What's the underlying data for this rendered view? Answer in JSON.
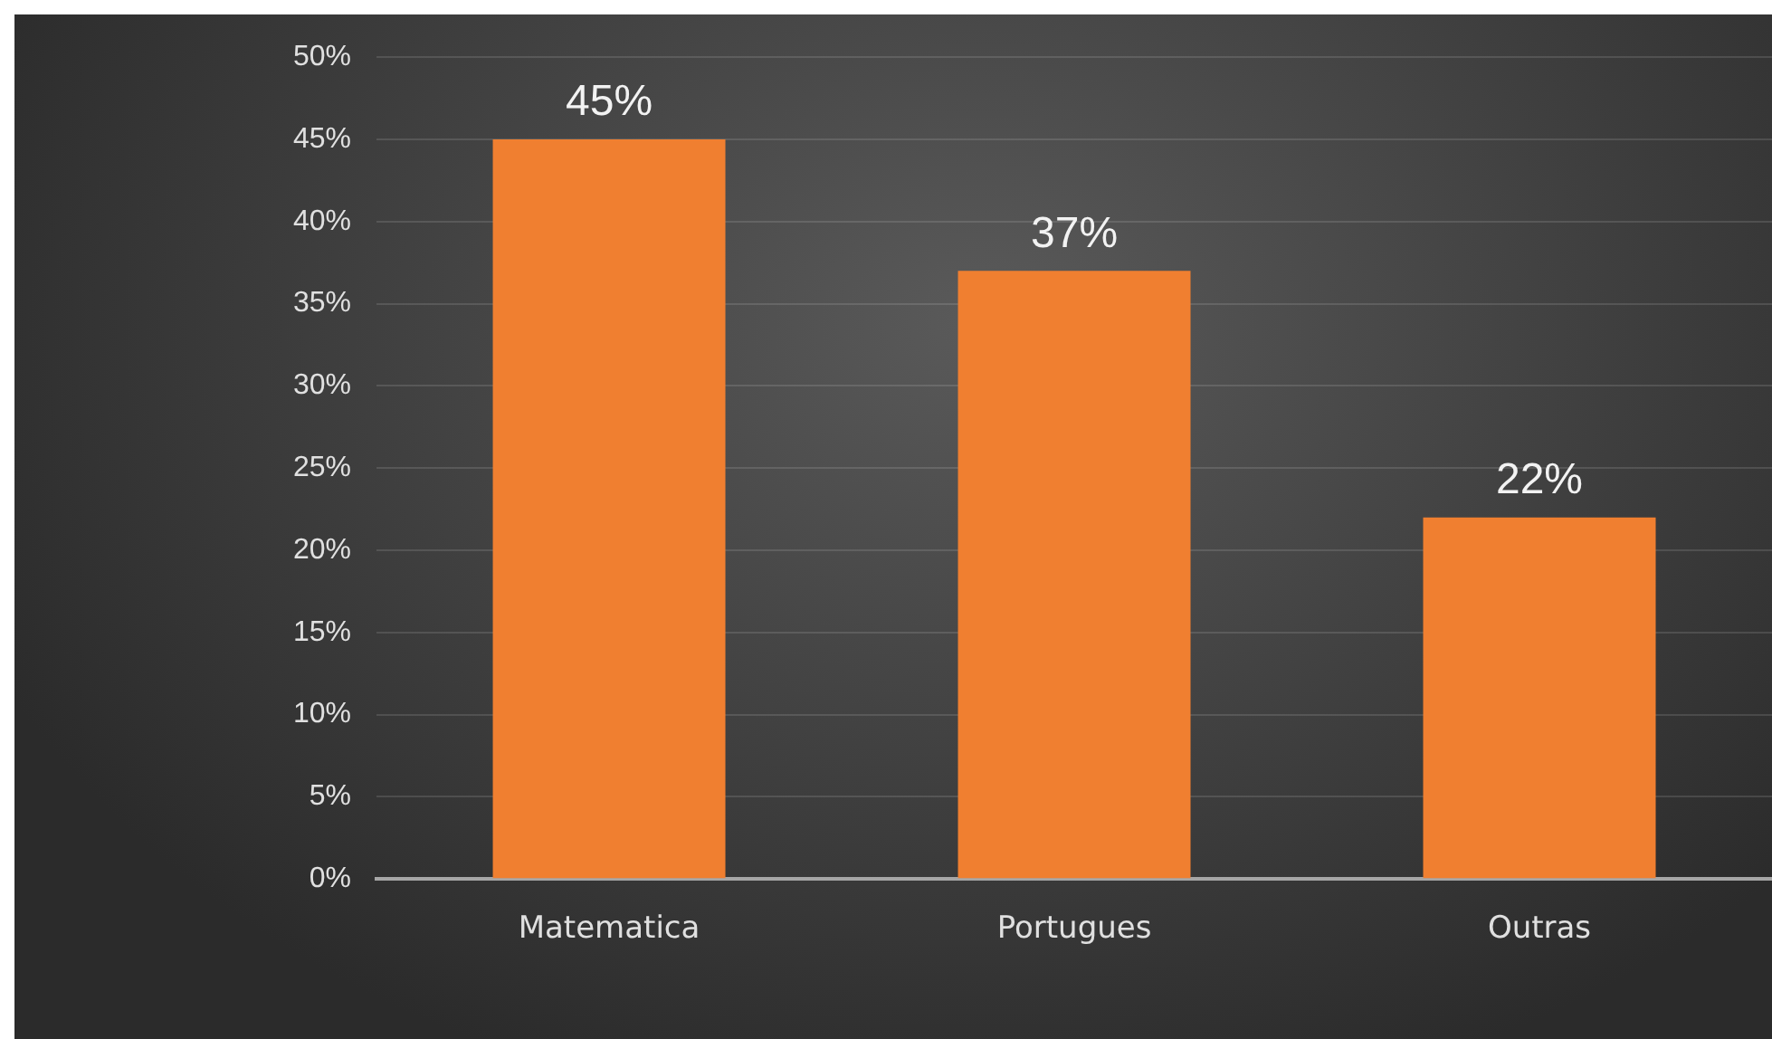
{
  "chart_data": {
    "type": "bar",
    "categories": [
      "Matematica",
      "Portugues",
      "Outras"
    ],
    "values": [
      45,
      37,
      22
    ],
    "color": "#f07f30",
    "value_labels": [
      "45%",
      "37%",
      "22%"
    ],
    "ylim": [
      0,
      50
    ],
    "yticks": [
      {
        "value": 0,
        "label": "0%"
      },
      {
        "value": 5,
        "label": "5%"
      },
      {
        "value": 10,
        "label": "10%"
      },
      {
        "value": 15,
        "label": "15%"
      },
      {
        "value": 20,
        "label": "20%"
      },
      {
        "value": 25,
        "label": "25%"
      },
      {
        "value": 30,
        "label": "30%"
      },
      {
        "value": 35,
        "label": "35%"
      },
      {
        "value": 40,
        "label": "40%"
      },
      {
        "value": 45,
        "label": "45%"
      },
      {
        "value": 50,
        "label": "50%"
      }
    ],
    "grid": "y",
    "legend": false
  }
}
